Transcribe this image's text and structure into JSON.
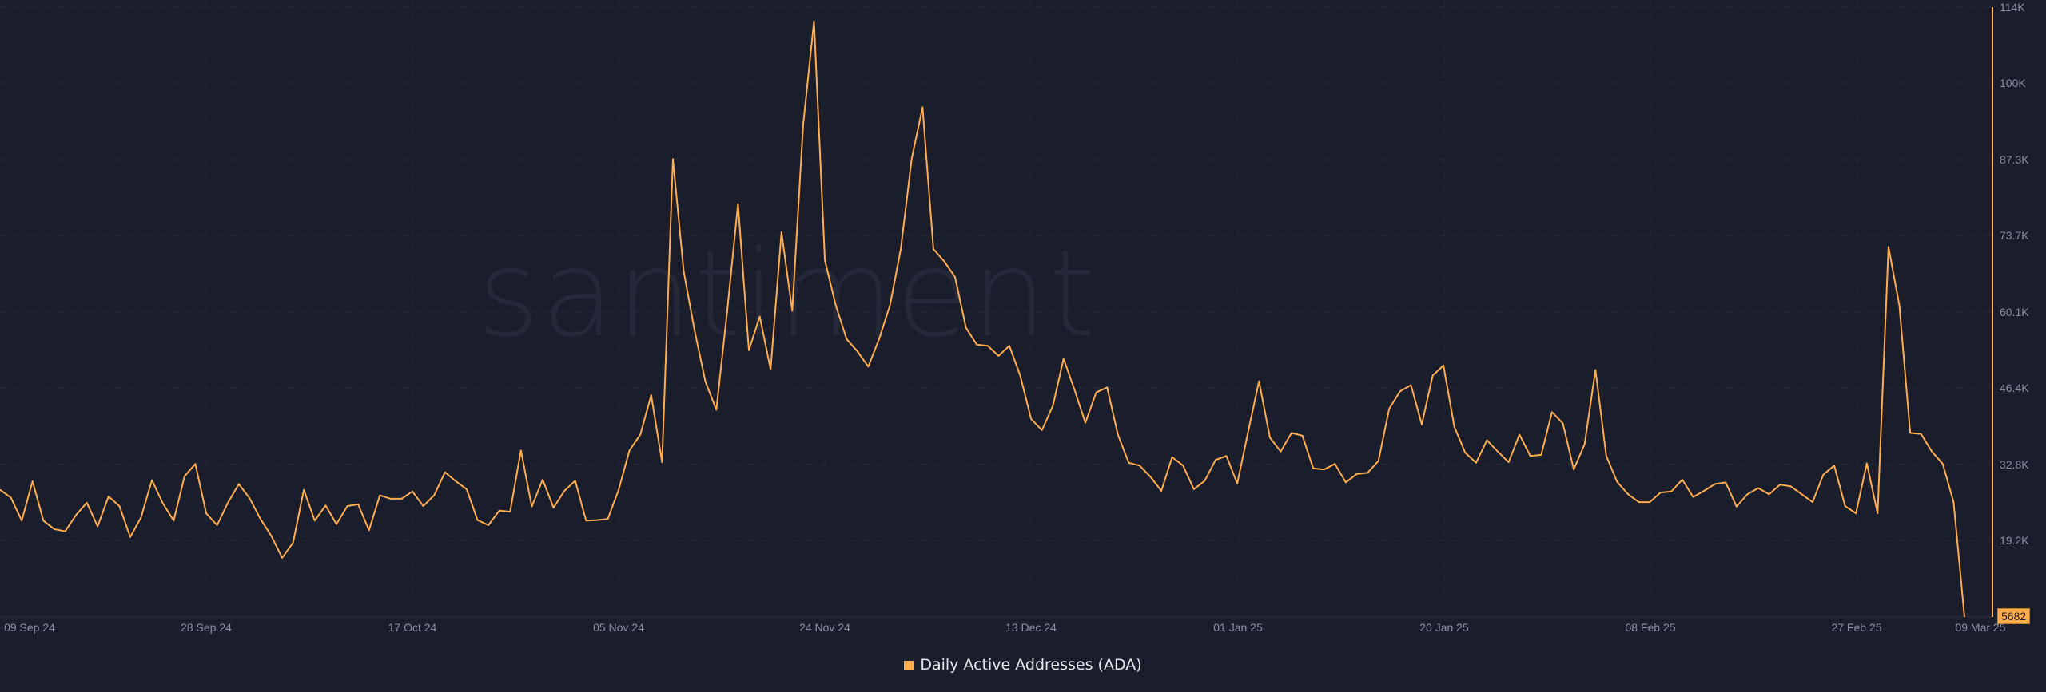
{
  "chart_data": {
    "type": "line",
    "title": "",
    "xlabel": "",
    "ylabel": "",
    "legend": [
      "Daily Active Addresses (ADA)"
    ],
    "legend_position": "bottom-center",
    "grid": true,
    "watermark": "·santiment·",
    "ylim": [
      5682,
      114000
    ],
    "y_ticks": [
      "114K",
      "100K",
      "87.3K",
      "73.7K",
      "60.1K",
      "46.4K",
      "32.8K",
      "19.2K"
    ],
    "x_ticks": [
      "09 Sep 24",
      "28 Sep 24",
      "17 Oct 24",
      "05 Nov 24",
      "24 Nov 24",
      "13 Dec 24",
      "01 Jan 25",
      "20 Jan 25",
      "08 Feb 25",
      "27 Feb 25",
      "09 Mar 25"
    ],
    "last_value_label": "5682",
    "series": [
      {
        "name": "Daily Active Addresses (ADA)",
        "color": "#ffad4d",
        "start_date": "09 Sep 24",
        "end_date": "09 Mar 25",
        "interval": "1d",
        "values": [
          28200,
          26800,
          22700,
          29700,
          22700,
          21200,
          20800,
          23700,
          25900,
          21700,
          27000,
          25300,
          19800,
          23300,
          29900,
          25800,
          22700,
          30600,
          32800,
          24000,
          21900,
          25900,
          29200,
          26700,
          23000,
          20000,
          16100,
          18800,
          28200,
          22700,
          25400,
          22100,
          25300,
          25600,
          21000,
          27200,
          26600,
          26600,
          27900,
          25300,
          27200,
          31300,
          29700,
          28300,
          22800,
          21900,
          24500,
          24300,
          35200,
          25200,
          30000,
          25000,
          28000,
          29800,
          22700,
          22800,
          23000,
          28200,
          35200,
          38000,
          45000,
          33100,
          87000,
          67000,
          56500,
          47400,
          42400,
          60000,
          79000,
          53000,
          59000,
          49600,
          74000,
          60000,
          93000,
          111500,
          69000,
          61000,
          55000,
          52800,
          50100,
          55000,
          61000,
          71000,
          87000,
          96200,
          71000,
          68800,
          66000,
          57000,
          54000,
          53800,
          52000,
          53800,
          48500,
          40800,
          38800,
          43100,
          51500,
          46000,
          40100,
          45500,
          46400,
          38000,
          33000,
          32500,
          30500,
          28000,
          34000,
          32500,
          28300,
          29800,
          33500,
          34200,
          29300,
          38500,
          47500,
          37500,
          35000,
          38300,
          37800,
          32000,
          31800,
          32800,
          29500,
          31000,
          31200,
          33300,
          42600,
          45700,
          46800,
          39800,
          48500,
          50300,
          39400,
          34800,
          33000,
          37000,
          35000,
          33100,
          38000,
          34200,
          34400,
          42000,
          40000,
          31800,
          36300,
          49500,
          34200,
          29600,
          27400,
          26000,
          26000,
          27700,
          27900,
          30000,
          26900,
          28000,
          29200,
          29500,
          25200,
          27400,
          28500,
          27400,
          29100,
          28800,
          27400,
          26000,
          30900,
          32500,
          25300,
          24000,
          32900,
          24000,
          71400,
          61000,
          38300,
          38100,
          35000,
          32800,
          26000,
          5682
        ]
      }
    ]
  },
  "legend": {
    "label": "Daily Active Addresses (ADA)",
    "color": "#ffad4d"
  },
  "last_value_badge": "5682",
  "watermark": "santiment"
}
